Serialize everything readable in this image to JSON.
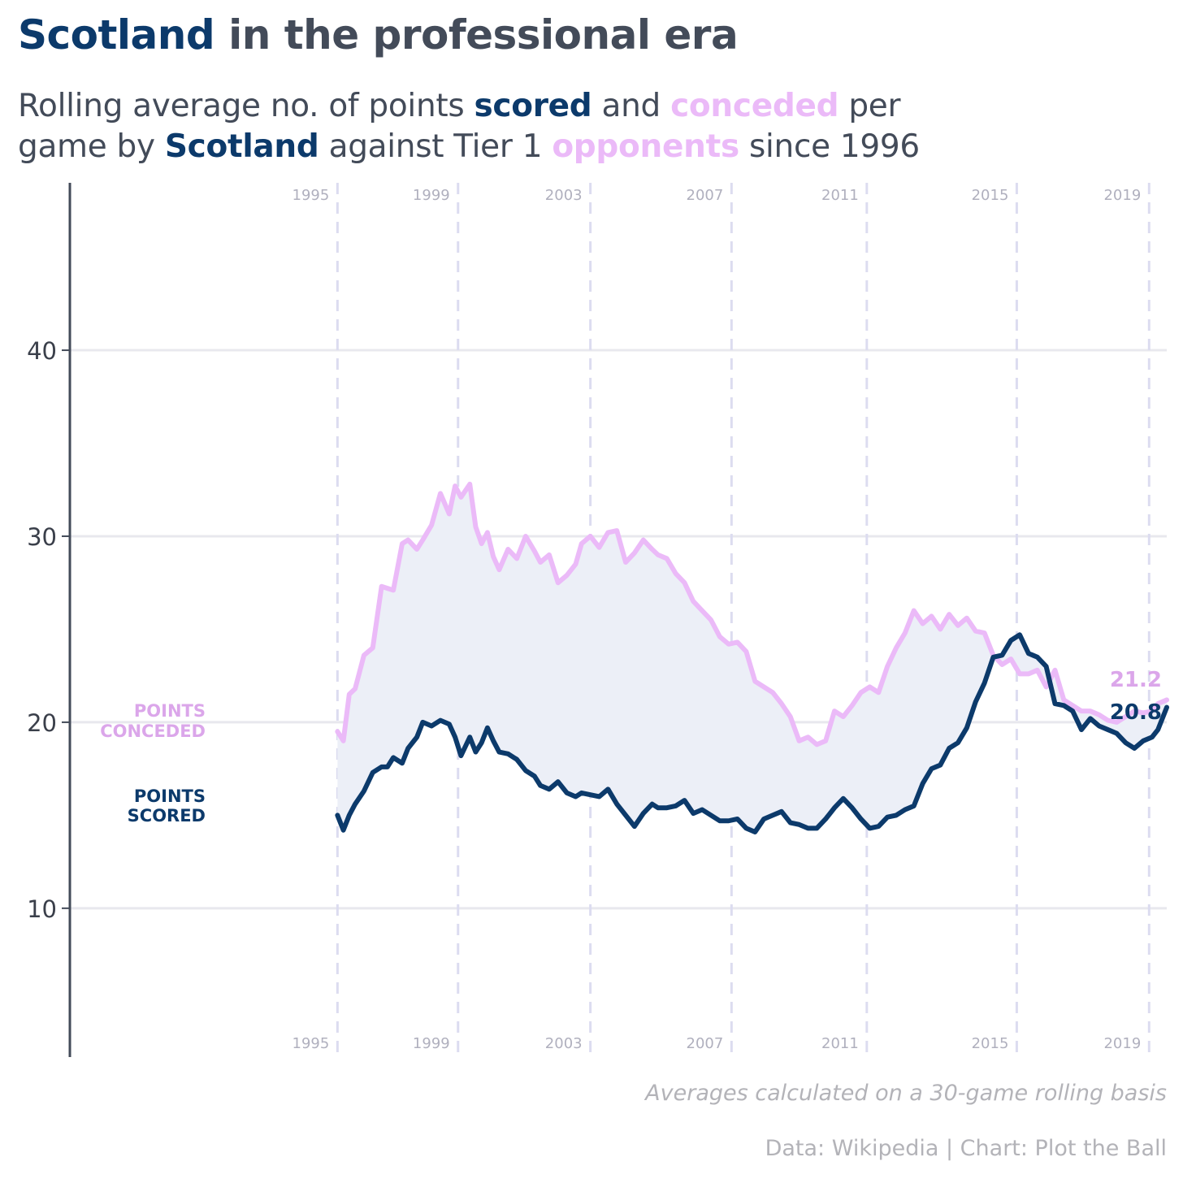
{
  "header": {
    "title_scotland": "Scotland",
    "title_rest": " in the professional era",
    "subtitle_parts": {
      "p1": "Rolling average no. of points ",
      "scored": "scored",
      "p2": " and ",
      "conceded": "conceded",
      "p3": " per",
      "p4": "game by ",
      "scotland": "Scotland",
      "p5": " against Tier 1 ",
      "opponents": "opponents",
      "p6": " since 1996"
    }
  },
  "footer": {
    "note": "Averages calculated on a 30-game rolling basis",
    "credit": "Data: Wikipedia | Chart: Plot the Ball"
  },
  "colors": {
    "scored": "#0c3a6b",
    "conceded": "#ebbaf8",
    "conceded_label": "#dba6ea",
    "fill": "#eceff7",
    "grid": "#e8e8ee",
    "year_line": "#dcdcf0",
    "axis": "#434b59",
    "tick_text": "#3a3f4a",
    "year_text": "#b0b0be"
  },
  "chart_data": {
    "type": "line",
    "title": "",
    "xlabel": "",
    "ylabel": "",
    "ylim": [
      2,
      49
    ],
    "yticks": [
      10,
      20,
      30,
      40
    ],
    "x_range": [
      1987,
      2024.3
    ],
    "year_markers": [
      {
        "label": "1995",
        "x": 1996.1
      },
      {
        "label": "1999",
        "x": 2000.2
      },
      {
        "label": "2003",
        "x": 2004.7
      },
      {
        "label": "2007",
        "x": 2009.5
      },
      {
        "label": "2011",
        "x": 2014.1
      },
      {
        "label": "2015",
        "x": 2019.2
      },
      {
        "label": "2019",
        "x": 2023.7
      }
    ],
    "end_labels": {
      "conceded": "21.2",
      "scored": "20.8"
    },
    "series_labels": {
      "conceded": [
        "POINTS",
        "CONCEDED"
      ],
      "scored": [
        "POINTS",
        "SCORED"
      ]
    },
    "series": [
      {
        "name": "conceded",
        "x": [
          1996.1,
          1996.3,
          1996.5,
          1996.7,
          1997.0,
          1997.3,
          1997.6,
          1997.8,
          1998.0,
          1998.3,
          1998.5,
          1998.8,
          1999.0,
          1999.3,
          1999.6,
          1999.9,
          2000.1,
          2000.3,
          2000.6,
          2000.8,
          2001.0,
          2001.2,
          2001.4,
          2001.6,
          2001.9,
          2002.2,
          2002.5,
          2002.8,
          2003.0,
          2003.3,
          2003.6,
          2003.9,
          2004.2,
          2004.4,
          2004.7,
          2005.0,
          2005.3,
          2005.6,
          2005.9,
          2006.2,
          2006.5,
          2006.8,
          2007.0,
          2007.3,
          2007.6,
          2007.9,
          2008.2,
          2008.5,
          2008.8,
          2009.1,
          2009.4,
          2009.7,
          2010.0,
          2010.3,
          2010.6,
          2010.9,
          2011.2,
          2011.5,
          2011.8,
          2012.1,
          2012.4,
          2012.7,
          2013.0,
          2013.3,
          2013.6,
          2013.9,
          2014.2,
          2014.5,
          2014.8,
          2015.1,
          2015.4,
          2015.7,
          2016.0,
          2016.3,
          2016.6,
          2016.9,
          2017.2,
          2017.5,
          2017.8,
          2018.1,
          2018.4,
          2018.7,
          2019.0,
          2019.3,
          2019.6,
          2019.9,
          2020.2,
          2020.5,
          2020.8,
          2021.1,
          2021.4,
          2021.7,
          2022.0,
          2022.3,
          2022.6,
          2022.9,
          2023.2,
          2023.5,
          2023.8,
          2024.0,
          2024.3
        ],
        "values": [
          19.5,
          19.0,
          21.5,
          21.8,
          23.6,
          24.0,
          27.3,
          27.2,
          27.1,
          29.6,
          29.8,
          29.3,
          29.8,
          30.6,
          32.3,
          31.2,
          32.7,
          32.1,
          32.8,
          30.5,
          29.6,
          30.2,
          28.9,
          28.2,
          29.3,
          28.8,
          30.0,
          29.2,
          28.6,
          29.0,
          27.5,
          27.9,
          28.5,
          29.6,
          30.0,
          29.4,
          30.2,
          30.3,
          28.6,
          29.1,
          29.8,
          29.3,
          29.0,
          28.8,
          28.0,
          27.5,
          26.5,
          26.0,
          25.5,
          24.6,
          24.2,
          24.3,
          23.8,
          22.2,
          21.9,
          21.6,
          21.0,
          20.3,
          19.0,
          19.2,
          18.8,
          19.0,
          20.6,
          20.3,
          20.9,
          21.6,
          21.9,
          21.6,
          23.0,
          24.0,
          24.8,
          26.0,
          25.3,
          25.7,
          25.0,
          25.8,
          25.2,
          25.6,
          24.9,
          24.8,
          23.6,
          23.1,
          23.4,
          22.6,
          22.6,
          22.8,
          21.9,
          22.8,
          21.2,
          20.9,
          20.6,
          20.6,
          20.4,
          20.1,
          20.0,
          20.3,
          20.6,
          20.5,
          20.6,
          21.0,
          21.2
        ]
      },
      {
        "name": "scored",
        "x": [
          1996.1,
          1996.3,
          1996.5,
          1996.7,
          1997.0,
          1997.3,
          1997.6,
          1997.8,
          1998.0,
          1998.3,
          1998.5,
          1998.8,
          1999.0,
          1999.3,
          1999.6,
          1999.9,
          2000.1,
          2000.3,
          2000.6,
          2000.8,
          2001.0,
          2001.2,
          2001.4,
          2001.6,
          2001.9,
          2002.2,
          2002.5,
          2002.8,
          2003.0,
          2003.3,
          2003.6,
          2003.9,
          2004.2,
          2004.4,
          2004.7,
          2005.0,
          2005.3,
          2005.6,
          2005.9,
          2006.2,
          2006.5,
          2006.8,
          2007.0,
          2007.3,
          2007.6,
          2007.9,
          2008.2,
          2008.5,
          2008.8,
          2009.1,
          2009.4,
          2009.7,
          2010.0,
          2010.3,
          2010.6,
          2010.9,
          2011.2,
          2011.5,
          2011.8,
          2012.1,
          2012.4,
          2012.7,
          2013.0,
          2013.3,
          2013.6,
          2013.9,
          2014.2,
          2014.5,
          2014.8,
          2015.1,
          2015.4,
          2015.7,
          2016.0,
          2016.3,
          2016.6,
          2016.9,
          2017.2,
          2017.5,
          2017.8,
          2018.1,
          2018.4,
          2018.7,
          2019.0,
          2019.3,
          2019.6,
          2019.9,
          2020.2,
          2020.5,
          2020.8,
          2021.1,
          2021.4,
          2021.7,
          2022.0,
          2022.3,
          2022.6,
          2022.9,
          2023.2,
          2023.5,
          2023.8,
          2024.0,
          2024.3
        ],
        "values": [
          15.0,
          14.2,
          15.0,
          15.6,
          16.3,
          17.3,
          17.6,
          17.6,
          18.1,
          17.8,
          18.6,
          19.2,
          20.0,
          19.8,
          20.1,
          19.9,
          19.2,
          18.2,
          19.2,
          18.4,
          18.9,
          19.7,
          19.0,
          18.4,
          18.3,
          18.0,
          17.4,
          17.1,
          16.6,
          16.4,
          16.8,
          16.2,
          16.0,
          16.2,
          16.1,
          16.0,
          16.4,
          15.6,
          15.0,
          14.4,
          15.1,
          15.6,
          15.4,
          15.4,
          15.5,
          15.8,
          15.1,
          15.3,
          15.0,
          14.7,
          14.7,
          14.8,
          14.3,
          14.1,
          14.8,
          15.0,
          15.2,
          14.6,
          14.5,
          14.3,
          14.3,
          14.8,
          15.4,
          15.9,
          15.4,
          14.8,
          14.3,
          14.4,
          14.9,
          15.0,
          15.3,
          15.5,
          16.7,
          17.5,
          17.7,
          18.6,
          18.9,
          19.7,
          21.1,
          22.1,
          23.5,
          23.6,
          24.4,
          24.7,
          23.7,
          23.5,
          23.0,
          21.0,
          20.9,
          20.6,
          19.6,
          20.2,
          19.8,
          19.6,
          19.4,
          18.9,
          18.6,
          19.0,
          19.2,
          19.6,
          20.8
        ]
      }
    ]
  }
}
